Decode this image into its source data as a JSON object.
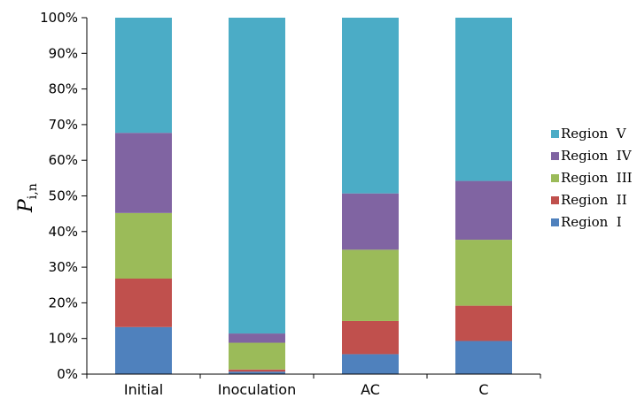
{
  "chart_data": {
    "type": "bar",
    "stacked": true,
    "categories": [
      "Initial",
      "Inoculation",
      "AC",
      "C"
    ],
    "series": [
      {
        "name": "Region  I",
        "color": "#4F81BD",
        "values": [
          13.2,
          0.7,
          5.6,
          9.3
        ]
      },
      {
        "name": "Region  II",
        "color": "#C0504D",
        "values": [
          13.6,
          0.6,
          9.3,
          9.9
        ]
      },
      {
        "name": "Region  III",
        "color": "#9BBB59",
        "values": [
          18.4,
          7.5,
          20.0,
          18.5
        ]
      },
      {
        "name": "Region  IV",
        "color": "#8064A2",
        "values": [
          22.5,
          2.6,
          15.8,
          16.5
        ]
      },
      {
        "name": "Region  V",
        "color": "#4BACC6",
        "values": [
          32.3,
          88.6,
          49.3,
          45.8
        ]
      }
    ],
    "ylim": [
      0,
      100
    ],
    "yticks": [
      "0%",
      "10%",
      "20%",
      "30%",
      "40%",
      "50%",
      "60%",
      "70%",
      "80%",
      "90%",
      "100%"
    ],
    "ylabel": {
      "main": "P",
      "sub": "i,n"
    },
    "legend_position": "right",
    "grid": false
  }
}
